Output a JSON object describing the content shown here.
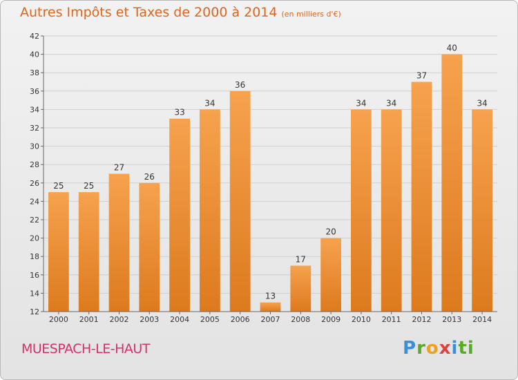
{
  "title_main": "Autres Impôts et Taxes de 2000 à 2014",
  "title_unit": "(en milliers d'€)",
  "place": "MUESPACH-LE-HAUT",
  "logo": "Proxiti",
  "colors": {
    "bar_top": "#f6a24e",
    "bar_bottom": "#dd7a1e",
    "title": "#e0641a",
    "place": "#d4306a"
  },
  "chart_data": {
    "type": "bar",
    "categories": [
      "2000",
      "2001",
      "2002",
      "2003",
      "2004",
      "2005",
      "2006",
      "2007",
      "2008",
      "2009",
      "2010",
      "2011",
      "2012",
      "2013",
      "2014"
    ],
    "values": [
      25,
      25,
      27,
      26,
      33,
      34,
      36,
      13,
      17,
      20,
      34,
      34,
      37,
      40,
      34
    ],
    "title": "Autres Impôts et Taxes de 2000 à 2014",
    "xlabel": "",
    "ylabel": "",
    "ylim": [
      12,
      42
    ],
    "yticks": [
      12,
      14,
      16,
      18,
      20,
      22,
      24,
      26,
      28,
      30,
      32,
      34,
      36,
      38,
      40,
      42
    ],
    "grid": true,
    "data_labels": true
  }
}
